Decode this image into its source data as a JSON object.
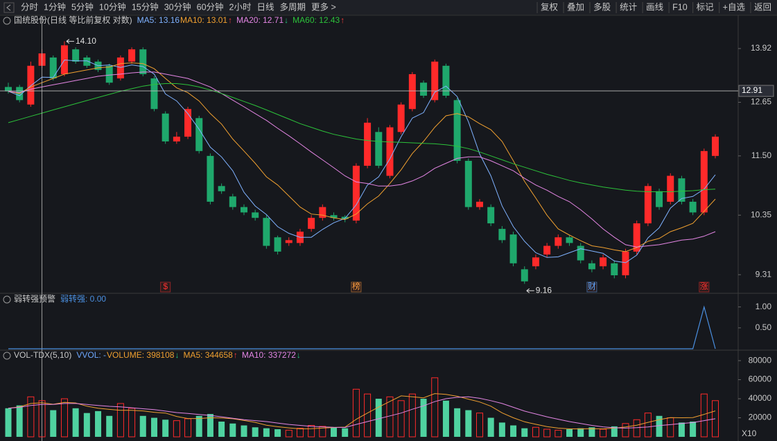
{
  "toolbar": {
    "periods": [
      "分时",
      "1分钟",
      "5分钟",
      "10分钟",
      "15分钟",
      "30分钟",
      "60分钟",
      "2小时",
      "日线",
      "多周期",
      "更多 >"
    ],
    "active": 8,
    "buttons": [
      "复权",
      "叠加",
      "多股",
      "统计",
      "画线",
      "F10",
      "标记",
      "+自选",
      "返回"
    ]
  },
  "chart_data": [
    {
      "type": "candlestick",
      "title": "国统股份(日线 等比前复权 对数)",
      "log_scale": true,
      "up_color": "#ff2a2a",
      "down_color": "#1fa86c",
      "ylim": [
        9.04,
        14.66
      ],
      "yticks": [
        13.92,
        {
          "value": 12.65,
          "label": "12.65"
        },
        {
          "value": 11.5,
          "label": "11.50"
        },
        10.35,
        9.31
      ],
      "open": [
        13.0,
        13.0,
        12.6,
        13.5,
        13.7,
        13.3,
        13.9,
        13.7,
        13.6,
        13.5,
        13.2,
        13.6,
        13.9,
        13.2,
        12.4,
        11.8,
        11.9,
        12.3,
        11.5,
        10.9,
        10.7,
        10.5,
        10.4,
        10.3,
        9.95,
        9.85,
        9.85,
        10.1,
        10.3,
        10.35,
        10.32,
        10.25,
        11.3,
        12.0,
        11.1,
        12.0,
        12.5,
        13.1,
        12.7,
        13.5,
        12.7,
        11.4,
        10.5,
        10.5,
        10.1,
        10.0,
        9.4,
        9.45,
        9.65,
        9.8,
        9.95,
        9.8,
        9.5,
        9.45,
        9.5,
        9.3,
        9.7,
        10.2,
        10.8,
        10.6,
        11.05,
        10.6,
        10.4,
        11.5
      ],
      "high": [
        13.1,
        13.05,
        13.6,
        13.9,
        13.75,
        14.1,
        13.95,
        13.75,
        13.65,
        13.55,
        13.75,
        13.95,
        13.95,
        13.25,
        12.45,
        12.0,
        12.55,
        12.35,
        11.55,
        10.95,
        10.75,
        10.55,
        10.45,
        10.35,
        9.98,
        9.95,
        10.1,
        10.35,
        10.55,
        10.4,
        10.35,
        11.35,
        12.3,
        12.1,
        12.15,
        12.65,
        13.35,
        13.15,
        13.65,
        13.55,
        12.75,
        11.45,
        10.65,
        10.55,
        10.15,
        10.05,
        9.45,
        9.65,
        9.85,
        10.0,
        9.98,
        9.85,
        9.55,
        9.65,
        9.55,
        9.75,
        10.25,
        10.95,
        10.85,
        11.15,
        11.1,
        10.65,
        11.65,
        11.95
      ],
      "low": [
        12.85,
        12.65,
        12.55,
        13.45,
        13.15,
        13.25,
        13.55,
        13.45,
        13.35,
        13.05,
        13.15,
        13.55,
        13.25,
        12.45,
        11.75,
        11.75,
        11.85,
        11.55,
        10.55,
        10.75,
        10.45,
        10.35,
        10.25,
        9.75,
        9.65,
        9.8,
        9.8,
        10.05,
        10.25,
        10.25,
        10.22,
        10.2,
        11.25,
        11.25,
        11.05,
        11.95,
        12.45,
        12.75,
        12.65,
        12.75,
        11.35,
        10.45,
        10.45,
        10.15,
        9.85,
        9.45,
        9.16,
        9.4,
        9.6,
        9.75,
        9.8,
        9.5,
        9.35,
        9.4,
        9.25,
        9.25,
        9.65,
        10.15,
        10.45,
        10.55,
        10.55,
        10.35,
        10.35,
        11.45
      ],
      "close": [
        12.9,
        12.7,
        13.5,
        13.8,
        13.2,
        14.0,
        13.6,
        13.5,
        13.4,
        13.1,
        13.7,
        13.9,
        13.3,
        12.5,
        11.8,
        11.9,
        12.5,
        11.6,
        10.6,
        10.8,
        10.5,
        10.4,
        10.3,
        9.8,
        9.7,
        9.9,
        10.05,
        10.3,
        10.5,
        10.3,
        10.28,
        11.3,
        12.2,
        11.3,
        12.1,
        12.6,
        13.3,
        12.8,
        13.6,
        12.8,
        11.4,
        10.5,
        10.6,
        10.2,
        9.9,
        9.5,
        9.2,
        9.6,
        9.8,
        9.95,
        9.85,
        9.55,
        9.4,
        9.6,
        9.3,
        9.7,
        10.2,
        10.9,
        10.5,
        11.1,
        10.6,
        10.4,
        11.6,
        11.9
      ],
      "series": [
        {
          "legend": "MA5: 13.16",
          "color": "#7fb2ff",
          "values": [
            12.9,
            12.8,
            13.03,
            13.23,
            13.22,
            13.64,
            13.62,
            13.62,
            13.5,
            13.52,
            13.46,
            13.52,
            13.48,
            13.3,
            12.84,
            12.68,
            12.4,
            12.06,
            11.68,
            11.48,
            11.2,
            10.78,
            10.52,
            10.36,
            10.14,
            10.02,
            9.95,
            9.95,
            10.09,
            10.21,
            10.29,
            10.54,
            10.92,
            11.08,
            11.44,
            11.9,
            12.3,
            12.42,
            12.88,
            13.02,
            12.78,
            12.22,
            11.54,
            11.1,
            10.52,
            10.14,
            9.88,
            9.68,
            9.6,
            9.61,
            9.68,
            9.75,
            9.71,
            9.67,
            9.54,
            9.51,
            9.64,
            9.94,
            10.12,
            10.48,
            10.66,
            10.7,
            10.84,
            11.12
          ]
        },
        {
          "legend": "MA10: 13.01",
          "arrow": "↑",
          "arrow_color": "#ff3b3b",
          "color": "#f0a030",
          "values": [
            12.9,
            12.85,
            13.0,
            13.1,
            13.2,
            13.3,
            13.35,
            13.4,
            13.45,
            13.47,
            13.55,
            13.57,
            13.55,
            13.43,
            13.2,
            12.98,
            12.87,
            12.68,
            12.4,
            12.17,
            11.85,
            11.6,
            11.35,
            11.08,
            10.92,
            10.71,
            10.5,
            10.37,
            10.35,
            10.3,
            10.27,
            10.37,
            10.56,
            10.71,
            10.95,
            11.22,
            11.55,
            11.8,
            12.1,
            12.35,
            12.4,
            12.33,
            12.18,
            12.05,
            11.8,
            11.4,
            10.99,
            10.67,
            10.35,
            10.1,
            9.99,
            9.89,
            9.8,
            9.77,
            9.73,
            9.7,
            9.77,
            9.88,
            9.93,
            10.05,
            10.12,
            10.2,
            10.42,
            10.65
          ]
        },
        {
          "legend": "MA20: 12.71",
          "arrow": "↓",
          "arrow_color": "#22c27a",
          "color": "#e486e4",
          "values": [
            12.9,
            12.87,
            12.95,
            13.0,
            13.05,
            13.1,
            13.15,
            13.2,
            13.25,
            13.28,
            13.3,
            13.33,
            13.35,
            13.35,
            13.3,
            13.25,
            13.2,
            13.1,
            13.0,
            12.85,
            12.7,
            12.55,
            12.4,
            12.25,
            12.08,
            11.92,
            11.75,
            11.58,
            11.42,
            11.26,
            11.1,
            10.98,
            10.95,
            10.9,
            10.9,
            10.93,
            11.0,
            11.1,
            11.25,
            11.35,
            11.45,
            11.48,
            11.48,
            11.4,
            11.3,
            11.2,
            11.05,
            10.92,
            10.82,
            10.7,
            10.6,
            10.45,
            10.28,
            10.1,
            9.95,
            9.82,
            9.78,
            9.8,
            9.82,
            9.86,
            9.9,
            9.92,
            9.97,
            10.05
          ]
        },
        {
          "legend": "MA60: 12.43",
          "arrow": "↑",
          "arrow_color": "#ff3b3b",
          "color": "#2cc23a",
          "values": [
            12.2,
            12.27,
            12.34,
            12.41,
            12.48,
            12.55,
            12.62,
            12.69,
            12.76,
            12.83,
            12.9,
            12.96,
            13.02,
            13.06,
            13.08,
            13.08,
            13.05,
            13.0,
            12.93,
            12.85,
            12.76,
            12.67,
            12.58,
            12.48,
            12.38,
            12.28,
            12.18,
            12.1,
            12.02,
            11.95,
            11.9,
            11.85,
            11.82,
            11.8,
            11.79,
            11.78,
            11.77,
            11.76,
            11.75,
            11.73,
            11.7,
            11.65,
            11.58,
            11.5,
            11.42,
            11.34,
            11.27,
            11.2,
            11.13,
            11.07,
            11.01,
            10.96,
            10.92,
            10.88,
            10.85,
            10.82,
            10.8,
            10.79,
            10.79,
            10.79,
            10.8,
            10.81,
            10.83,
            10.84
          ]
        }
      ],
      "annotations": [
        {
          "text": "14.10",
          "value": 14.1,
          "side": "high"
        },
        {
          "text": "9.16",
          "value": 9.16,
          "side": "low"
        }
      ],
      "events": [
        {
          "label": "$",
          "candle": 14,
          "color": "#ff3030"
        },
        {
          "label": "榜",
          "candle": 31,
          "color": "#ffa040"
        },
        {
          "label": "财",
          "candle": 52,
          "color": "#5fa8ff"
        },
        {
          "label": "涨",
          "candle": 62,
          "color": "#ff3030"
        }
      ],
      "crosshair": {
        "candle": 3,
        "price": {
          "value": 12.91,
          "label": "12.91"
        }
      }
    },
    {
      "type": "line",
      "title": "弱转强预警",
      "legend": "弱转强: 0.00",
      "color": "#4a8fe0",
      "ylim": [
        0,
        1.21
      ],
      "yticks": [
        {
          "value": 1,
          "label": "1.00"
        },
        {
          "value": 0.5,
          "label": "0.50"
        }
      ],
      "values": [
        0,
        0,
        0,
        0,
        0,
        0,
        0,
        0,
        0,
        0,
        0,
        0,
        0,
        0,
        0,
        0,
        0,
        0,
        0,
        0,
        0,
        0,
        0,
        0,
        0,
        0,
        0,
        0,
        0,
        0,
        0,
        0,
        0,
        0,
        0,
        0,
        0,
        0,
        0,
        0,
        0,
        0,
        0,
        0,
        0,
        0,
        0,
        0,
        0,
        0,
        0,
        0,
        0,
        0,
        0,
        0,
        0,
        0,
        0,
        0,
        0,
        0,
        1,
        0
      ]
    },
    {
      "type": "bar",
      "title": "VOL-TDX(5,10)",
      "unit_label": "X10",
      "legend_items": [
        {
          "text": "VVOL: -",
          "color": "#6fa8ff"
        },
        {
          "text": "VOLUME: 398108",
          "arrow": "↓",
          "color": "#f0a030",
          "arrow_color": "#22c27a"
        }
      ],
      "ylim": [
        0,
        88800
      ],
      "yticks": [
        20000,
        40000,
        60000,
        80000
      ],
      "values": [
        30000,
        33000,
        42000,
        38000,
        28000,
        40000,
        30000,
        25000,
        27000,
        22000,
        35000,
        30000,
        22000,
        20000,
        18000,
        17000,
        19000,
        22000,
        24000,
        16000,
        14000,
        12000,
        10000,
        9000,
        8000,
        7000,
        9000,
        12000,
        11000,
        10000,
        9000,
        50000,
        45000,
        40000,
        42000,
        38000,
        45000,
        40000,
        62000,
        38000,
        30000,
        28000,
        25000,
        20000,
        15000,
        12000,
        9000,
        10000,
        8000,
        7000,
        8000,
        9000,
        10000,
        8000,
        11000,
        14000,
        18000,
        25000,
        22000,
        20000,
        15000,
        16000,
        45000,
        38000
      ],
      "series": [
        {
          "legend": "MA5: 344658",
          "arrow": "↑",
          "arrow_color": "#ff3b3b",
          "color": "#f0a030",
          "values": [
            30000,
            31500,
            35000,
            35750,
            34200,
            36200,
            35600,
            32200,
            30000,
            28800,
            27800,
            27800,
            27200,
            25800,
            25000,
            21400,
            19200,
            19200,
            20000,
            19800,
            19000,
            17200,
            15200,
            12200,
            10600,
            9400,
            8400,
            8600,
            9200,
            9800,
            10200,
            18400,
            25000,
            31200,
            37200,
            43000,
            42000,
            41000,
            45400,
            44600,
            42600,
            39600,
            36600,
            32200,
            25200,
            20000,
            15800,
            13200,
            10800,
            9200,
            8400,
            8400,
            8600,
            8400,
            9200,
            10400,
            12200,
            15200,
            18000,
            20200,
            20000,
            20200,
            23600,
            27200
          ]
        },
        {
          "legend": "MA10: 337272",
          "arrow": "↓",
          "arrow_color": "#22c27a",
          "color": "#e486e4",
          "values": [
            30000,
            31000,
            33000,
            34000,
            34000,
            35000,
            35000,
            34000,
            33000,
            32000,
            31500,
            30500,
            29500,
            28500,
            27000,
            25500,
            24500,
            23500,
            22500,
            21000,
            19500,
            18000,
            17000,
            16000,
            14500,
            13000,
            12000,
            11000,
            10500,
            10000,
            9800,
            13000,
            16000,
            19000,
            22000,
            25000,
            29000,
            32500,
            37000,
            40000,
            41500,
            42000,
            40500,
            38000,
            35000,
            31000,
            27000,
            24000,
            21000,
            18500,
            16000,
            14000,
            12000,
            10500,
            9500,
            9200,
            9600,
            10400,
            11800,
            12800,
            14000,
            15000,
            17000,
            19000
          ]
        }
      ]
    }
  ]
}
